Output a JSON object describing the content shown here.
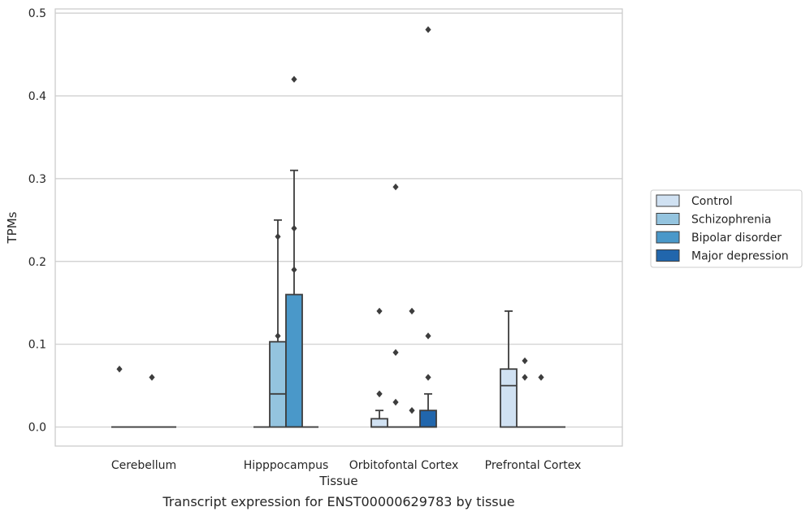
{
  "chart_data": {
    "type": "boxplot",
    "caption": "Transcript expression for ENST00000629783 by tissue",
    "xlabel": "Tissue",
    "ylabel": "TPMs",
    "ylim": [
      -0.023,
      0.505
    ],
    "yticks": [
      "0.0",
      "0.1",
      "0.2",
      "0.3",
      "0.4",
      "0.5"
    ],
    "ytick_values": [
      0.0,
      0.1,
      0.2,
      0.3,
      0.4,
      0.5
    ],
    "grid": true,
    "legend_position": "right-center",
    "categories": [
      "Cerebellum",
      "Hipppocampus",
      "Orbitofontal Cortex",
      "Prefrontal Cortex"
    ],
    "series": [
      {
        "name": "Control",
        "color": "#d0e1f2",
        "boxes": [
          {
            "q1": 0,
            "median": 0,
            "q3": 0,
            "wlo": 0,
            "whi": 0,
            "outliers": [
              0.07
            ]
          },
          {
            "q1": 0,
            "median": 0,
            "q3": 0,
            "wlo": 0,
            "whi": 0,
            "outliers": []
          },
          {
            "q1": 0,
            "median": 0,
            "q3": 0.01,
            "wlo": 0,
            "whi": 0.02,
            "outliers": [
              0.14,
              0.04,
              0.04
            ]
          },
          {
            "q1": 0,
            "median": 0.05,
            "q3": 0.07,
            "wlo": 0,
            "whi": 0.14,
            "outliers": []
          }
        ]
      },
      {
        "name": "Schizophrenia",
        "color": "#94c4df",
        "boxes": [
          {
            "q1": 0,
            "median": 0,
            "q3": 0,
            "wlo": 0,
            "whi": 0,
            "outliers": []
          },
          {
            "q1": 0,
            "median": 0.04,
            "q3": 0.103,
            "wlo": 0,
            "whi": 0.25,
            "outliers": [
              0.23,
              0.11
            ]
          },
          {
            "q1": 0,
            "median": 0,
            "q3": 0,
            "wlo": 0,
            "whi": 0,
            "outliers": [
              0.29,
              0.09,
              0.03
            ]
          },
          {
            "q1": 0,
            "median": 0,
            "q3": 0,
            "wlo": 0,
            "whi": 0,
            "outliers": [
              0.08,
              0.06
            ]
          }
        ]
      },
      {
        "name": "Bipolar disorder",
        "color": "#4a98c9",
        "boxes": [
          {
            "q1": 0,
            "median": 0,
            "q3": 0,
            "wlo": 0,
            "whi": 0,
            "outliers": [
              0.06
            ]
          },
          {
            "q1": 0,
            "median": 0,
            "q3": 0.16,
            "wlo": 0,
            "whi": 0.31,
            "outliers": [
              0.42,
              0.24,
              0.19
            ]
          },
          {
            "q1": 0,
            "median": 0,
            "q3": 0,
            "wlo": 0,
            "whi": 0,
            "outliers": [
              0.14,
              0.02
            ]
          },
          {
            "q1": 0,
            "median": 0,
            "q3": 0,
            "wlo": 0,
            "whi": 0,
            "outliers": [
              0.06
            ]
          }
        ]
      },
      {
        "name": "Major depression",
        "color": "#2166ac",
        "boxes": [
          {
            "q1": 0,
            "median": 0,
            "q3": 0,
            "wlo": 0,
            "whi": 0,
            "outliers": []
          },
          {
            "q1": 0,
            "median": 0,
            "q3": 0,
            "wlo": 0,
            "whi": 0,
            "outliers": []
          },
          {
            "q1": 0,
            "median": 0,
            "q3": 0.02,
            "wlo": 0,
            "whi": 0.04,
            "outliers": [
              0.48,
              0.11,
              0.06
            ]
          },
          {
            "q1": 0,
            "median": 0,
            "q3": 0,
            "wlo": 0,
            "whi": 0,
            "outliers": []
          }
        ]
      }
    ]
  }
}
